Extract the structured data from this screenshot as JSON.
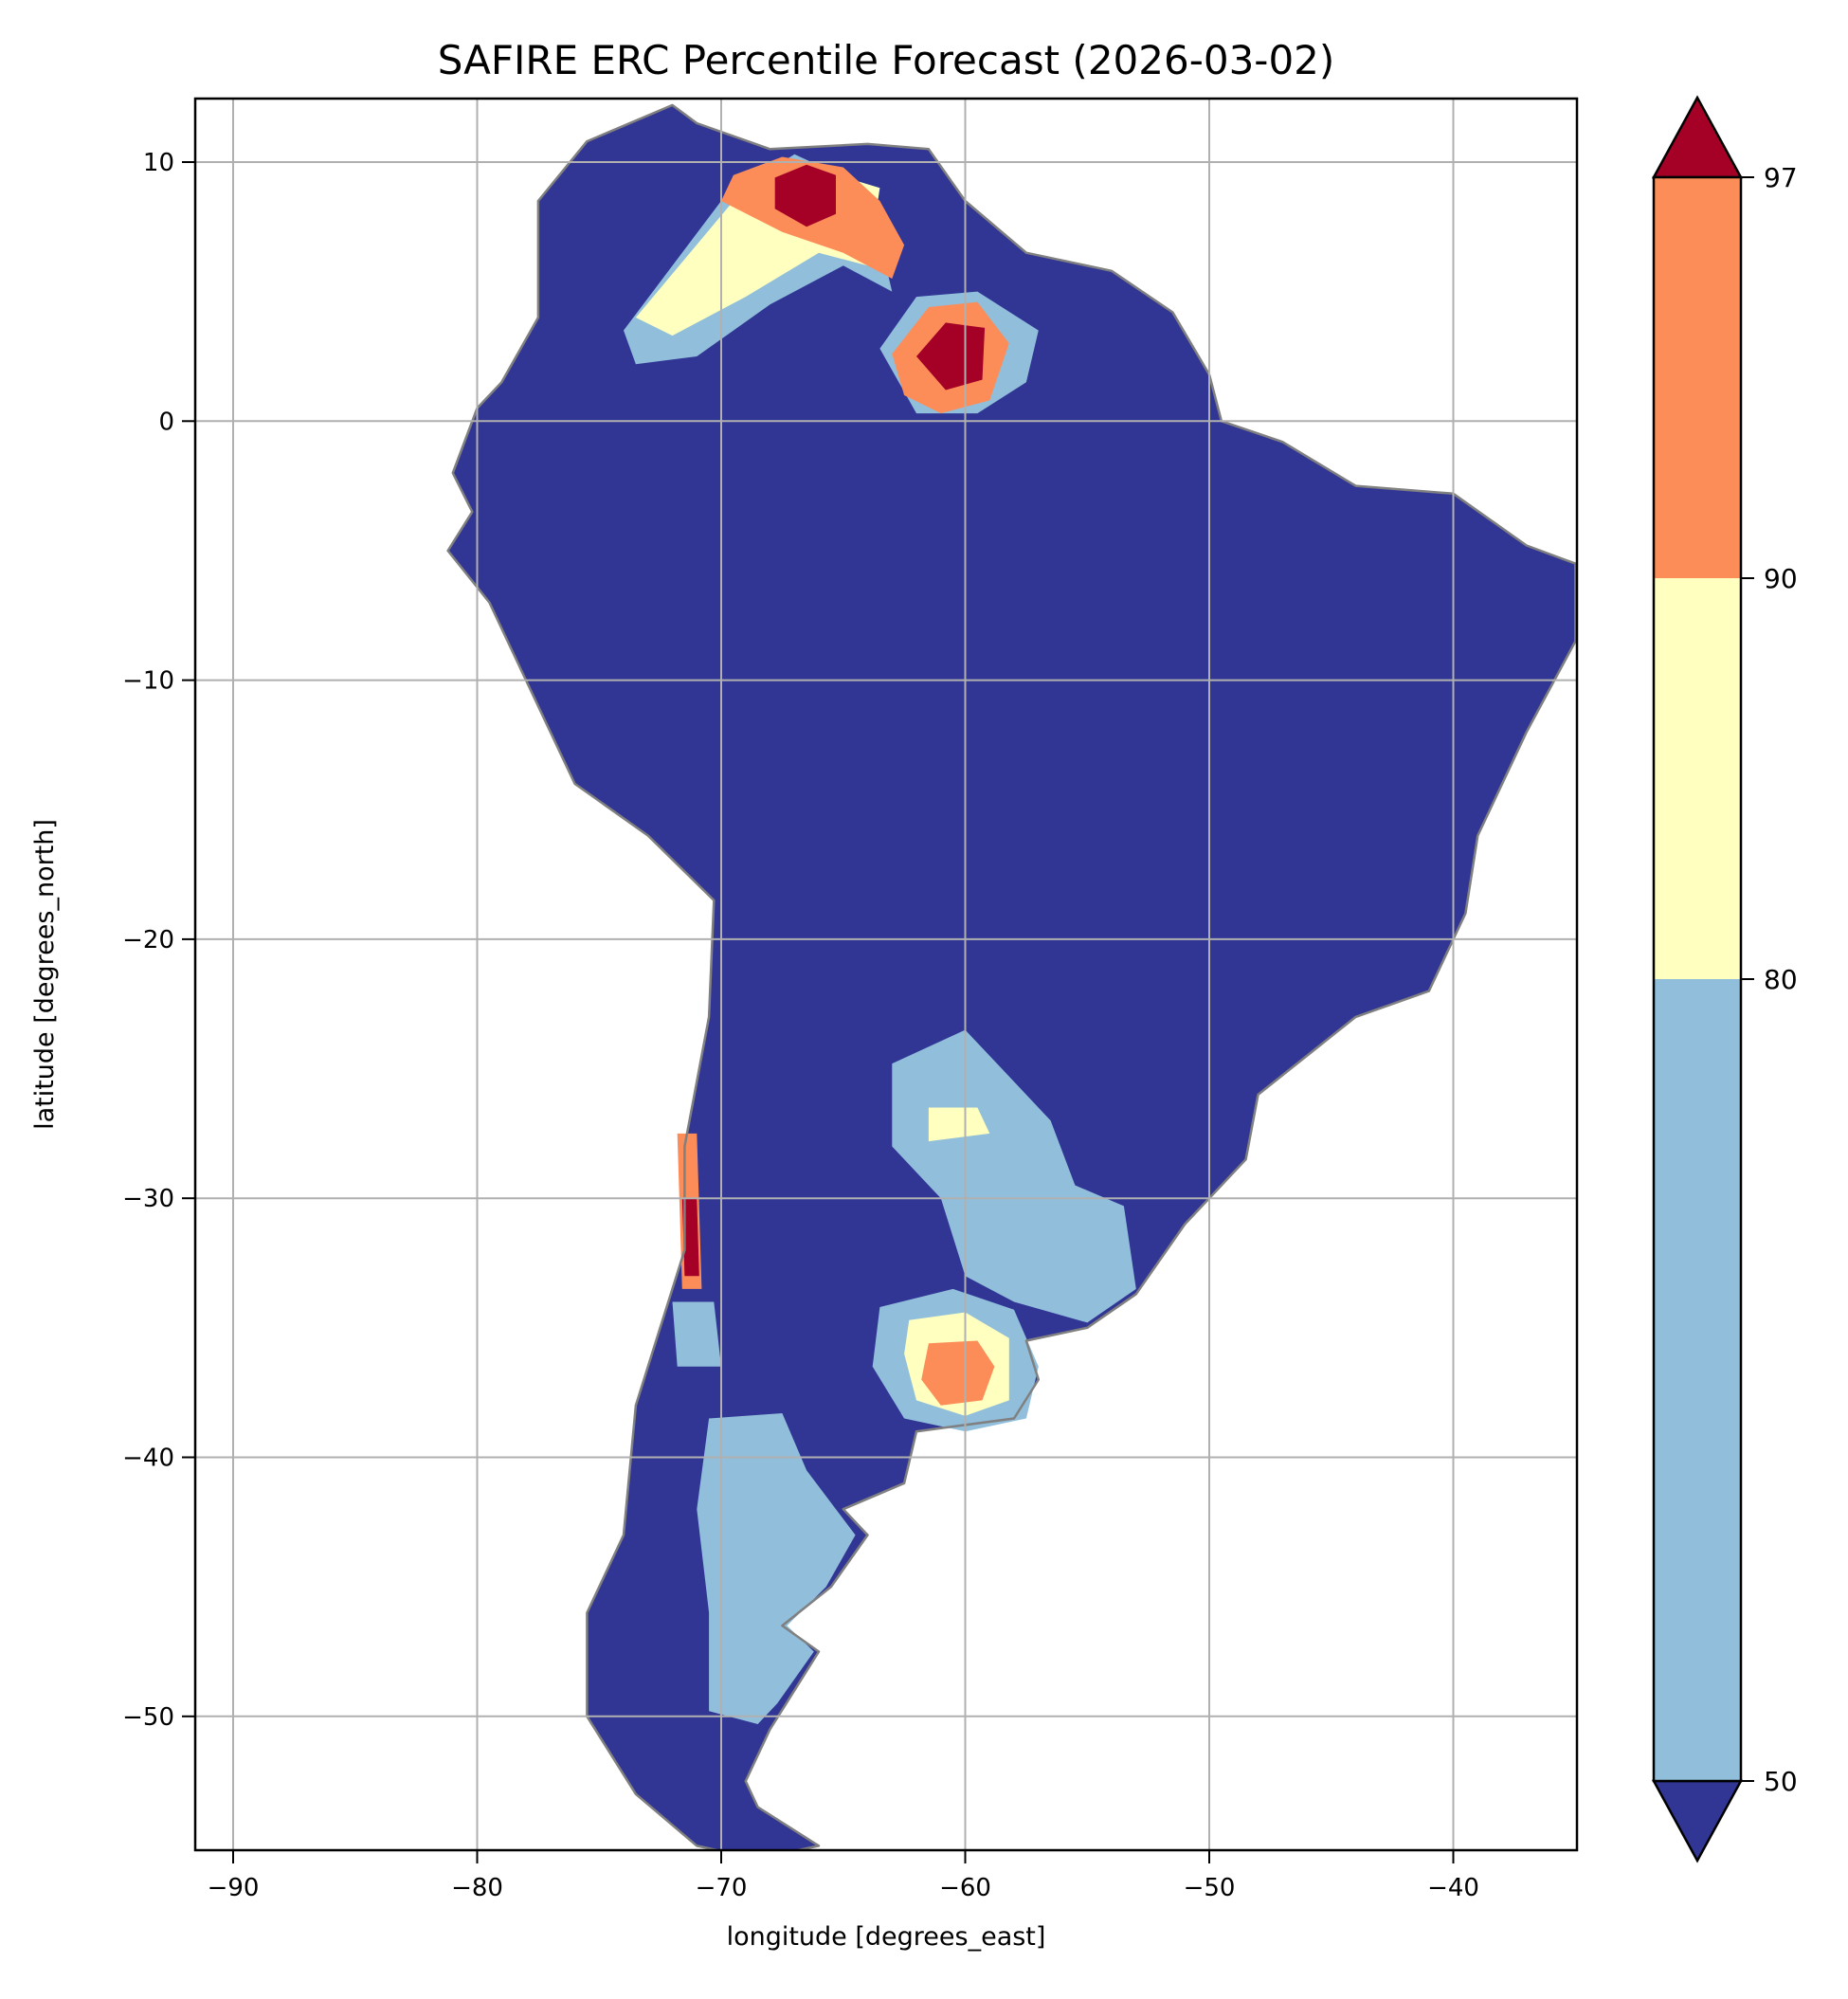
{
  "chart_data": {
    "type": "heatmap",
    "title": "SAFIRE ERC Percentile Forecast (2026-03-02)",
    "xlabel": "longitude [degrees_east]",
    "ylabel": "latitude [degrees_north]",
    "xlim": [
      -91.6,
      -34.9
    ],
    "ylim": [
      -55.2,
      12.4
    ],
    "xticks": [
      -90,
      -80,
      -70,
      -60,
      -50,
      -40
    ],
    "yticks": [
      10,
      0,
      -10,
      -20,
      -30,
      -40,
      -50
    ],
    "grid": true,
    "colorbar": {
      "orientation": "vertical",
      "position": "right",
      "extend": "both",
      "ticks": [
        50,
        80,
        90,
        97
      ],
      "bins": [
        {
          "range": "<50",
          "color": "#313695"
        },
        {
          "range": "50-80",
          "color": "#91bfdb"
        },
        {
          "range": "80-90",
          "color": "#ffffbf"
        },
        {
          "range": "90-97",
          "color": "#fc8d59"
        },
        {
          "range": ">97",
          "color": "#a50026"
        }
      ]
    },
    "background_class": "<50",
    "land_outline": [
      [
        -77.5,
        8.5
      ],
      [
        -75.5,
        10.8
      ],
      [
        -72,
        12.2
      ],
      [
        -71,
        11.5
      ],
      [
        -68,
        10.5
      ],
      [
        -64,
        10.7
      ],
      [
        -61.5,
        10.5
      ],
      [
        -60,
        8.5
      ],
      [
        -57.5,
        6.5
      ],
      [
        -54,
        5.8
      ],
      [
        -51.5,
        4.2
      ],
      [
        -50,
        1.8
      ],
      [
        -49.5,
        0
      ],
      [
        -47,
        -0.8
      ],
      [
        -44,
        -2.5
      ],
      [
        -40,
        -2.8
      ],
      [
        -37,
        -4.8
      ],
      [
        -35,
        -5.5
      ],
      [
        -35,
        -8.5
      ],
      [
        -37,
        -12
      ],
      [
        -39,
        -16
      ],
      [
        -39.5,
        -19
      ],
      [
        -41,
        -22
      ],
      [
        -44,
        -23
      ],
      [
        -48,
        -26
      ],
      [
        -48.5,
        -28.5
      ],
      [
        -51,
        -31
      ],
      [
        -53,
        -33.7
      ],
      [
        -55,
        -35
      ],
      [
        -57.5,
        -35.5
      ],
      [
        -57,
        -37
      ],
      [
        -58,
        -38.5
      ],
      [
        -62,
        -39
      ],
      [
        -62.5,
        -41
      ],
      [
        -65,
        -42
      ],
      [
        -64,
        -43
      ],
      [
        -65.5,
        -45
      ],
      [
        -67.5,
        -46.5
      ],
      [
        -66,
        -47.5
      ],
      [
        -68,
        -50.5
      ],
      [
        -69,
        -52.5
      ],
      [
        -68.5,
        -53.5
      ],
      [
        -66,
        -55
      ],
      [
        -68.5,
        -55.5
      ],
      [
        -71,
        -55
      ],
      [
        -73.5,
        -53
      ],
      [
        -75.5,
        -50
      ],
      [
        -75.5,
        -46
      ],
      [
        -74,
        -43
      ],
      [
        -73.5,
        -38
      ],
      [
        -72.5,
        -35
      ],
      [
        -71.5,
        -32
      ],
      [
        -71.5,
        -28
      ],
      [
        -70.5,
        -23
      ],
      [
        -70.3,
        -18.5
      ],
      [
        -73,
        -16
      ],
      [
        -76,
        -14
      ],
      [
        -78,
        -10
      ],
      [
        -79.5,
        -7
      ],
      [
        -81.2,
        -5
      ],
      [
        -80.2,
        -3.5
      ],
      [
        -81,
        -2
      ],
      [
        -80,
        0.5
      ],
      [
        -79,
        1.5
      ],
      [
        -77.5,
        4
      ],
      [
        -77.5,
        6.5
      ]
    ],
    "regions": [
      {
        "class": "50-80",
        "polygon": [
          [
            -74,
            3.5
          ],
          [
            -73.5,
            2.2
          ],
          [
            -71,
            2.5
          ],
          [
            -68,
            4.5
          ],
          [
            -65,
            6
          ],
          [
            -63,
            5
          ],
          [
            -64,
            9
          ],
          [
            -67,
            10.3
          ],
          [
            -70,
            8.5
          ]
        ]
      },
      {
        "class": "80-90",
        "polygon": [
          [
            -73.5,
            4
          ],
          [
            -72,
            3.3
          ],
          [
            -69,
            4.8
          ],
          [
            -66,
            6.5
          ],
          [
            -64,
            6
          ],
          [
            -63.5,
            9
          ],
          [
            -67,
            10
          ],
          [
            -69.5,
            8.5
          ]
        ]
      },
      {
        "class": "90-97",
        "polygon": [
          [
            -70,
            8.5
          ],
          [
            -67.5,
            7.3
          ],
          [
            -65,
            6.5
          ],
          [
            -63,
            5.5
          ],
          [
            -62.5,
            6.8
          ],
          [
            -63.5,
            8.5
          ],
          [
            -65,
            9.8
          ],
          [
            -67.5,
            10.2
          ],
          [
            -69.5,
            9.5
          ]
        ]
      },
      {
        "class": ">97",
        "polygon": [
          [
            -67.8,
            8.2
          ],
          [
            -66.5,
            7.5
          ],
          [
            -65.3,
            8
          ],
          [
            -65.3,
            9.5
          ],
          [
            -66.5,
            9.9
          ],
          [
            -67.8,
            9.4
          ]
        ]
      },
      {
        "class": "50-80",
        "polygon": [
          [
            -63.5,
            2.8
          ],
          [
            -62,
            4.8
          ],
          [
            -59.5,
            5
          ],
          [
            -57,
            3.5
          ],
          [
            -57.5,
            1.5
          ],
          [
            -59.5,
            0.3
          ],
          [
            -62,
            0.3
          ]
        ]
      },
      {
        "class": "90-97",
        "polygon": [
          [
            -63,
            2.6
          ],
          [
            -61.5,
            4.4
          ],
          [
            -59.5,
            4.6
          ],
          [
            -58.2,
            3
          ],
          [
            -59,
            0.8
          ],
          [
            -61,
            0.3
          ],
          [
            -62.5,
            1
          ]
        ]
      },
      {
        "class": ">97",
        "polygon": [
          [
            -62,
            2.5
          ],
          [
            -60.8,
            3.8
          ],
          [
            -59.2,
            3.6
          ],
          [
            -59.3,
            1.6
          ],
          [
            -60.8,
            1.2
          ]
        ]
      },
      {
        "class": "50-80",
        "polygon": [
          [
            -63,
            -24.8
          ],
          [
            -60,
            -23.5
          ],
          [
            -58.5,
            -25
          ],
          [
            -56.5,
            -27
          ],
          [
            -55.5,
            -29.5
          ],
          [
            -53.5,
            -30.3
          ],
          [
            -53,
            -33.5
          ],
          [
            -55,
            -34.8
          ],
          [
            -58,
            -34
          ],
          [
            -60,
            -33
          ],
          [
            -61,
            -30
          ],
          [
            -63,
            -28
          ]
        ]
      },
      {
        "class": "80-90",
        "polygon": [
          [
            -61.5,
            -26.5
          ],
          [
            -59.5,
            -26.5
          ],
          [
            -59,
            -27.5
          ],
          [
            -61.5,
            -27.8
          ]
        ]
      },
      {
        "class": "50-80",
        "polygon": [
          [
            -63.5,
            -34.2
          ],
          [
            -60.5,
            -33.5
          ],
          [
            -58,
            -34.3
          ],
          [
            -57,
            -36.5
          ],
          [
            -57.5,
            -38.5
          ],
          [
            -60,
            -39
          ],
          [
            -62.5,
            -38.5
          ],
          [
            -63.8,
            -36.5
          ]
        ]
      },
      {
        "class": "80-90",
        "polygon": [
          [
            -62.3,
            -34.7
          ],
          [
            -60,
            -34.4
          ],
          [
            -58.2,
            -35.4
          ],
          [
            -58.2,
            -37.8
          ],
          [
            -60,
            -38.4
          ],
          [
            -62,
            -37.8
          ],
          [
            -62.5,
            -36
          ]
        ]
      },
      {
        "class": "90-97",
        "polygon": [
          [
            -61.5,
            -35.6
          ],
          [
            -59.5,
            -35.5
          ],
          [
            -58.8,
            -36.5
          ],
          [
            -59.3,
            -37.8
          ],
          [
            -61,
            -38
          ],
          [
            -61.8,
            -37
          ]
        ]
      },
      {
        "class": "50-80",
        "polygon": [
          [
            -70.5,
            -38.5
          ],
          [
            -67.5,
            -38.3
          ],
          [
            -66.5,
            -40.5
          ],
          [
            -65.3,
            -42
          ],
          [
            -64.5,
            -43
          ],
          [
            -65.7,
            -45
          ],
          [
            -67.3,
            -46.5
          ],
          [
            -66.2,
            -47.5
          ],
          [
            -67.7,
            -49.5
          ],
          [
            -68.5,
            -50.3
          ],
          [
            -70.5,
            -49.8
          ],
          [
            -70.5,
            -46
          ],
          [
            -71,
            -42
          ]
        ]
      },
      {
        "class": "50-80",
        "polygon": [
          [
            -72,
            -34
          ],
          [
            -70.3,
            -34
          ],
          [
            -70,
            -36.5
          ],
          [
            -71.8,
            -36.5
          ]
        ]
      },
      {
        "class": "90-97",
        "polygon": [
          [
            -71.8,
            -27.5
          ],
          [
            -71,
            -27.5
          ],
          [
            -70.8,
            -33.5
          ],
          [
            -71.6,
            -33.5
          ]
        ]
      },
      {
        "class": ">97",
        "polygon": [
          [
            -71.6,
            -30
          ],
          [
            -71,
            -30
          ],
          [
            -70.9,
            -33
          ],
          [
            -71.5,
            -33
          ]
        ]
      }
    ]
  }
}
